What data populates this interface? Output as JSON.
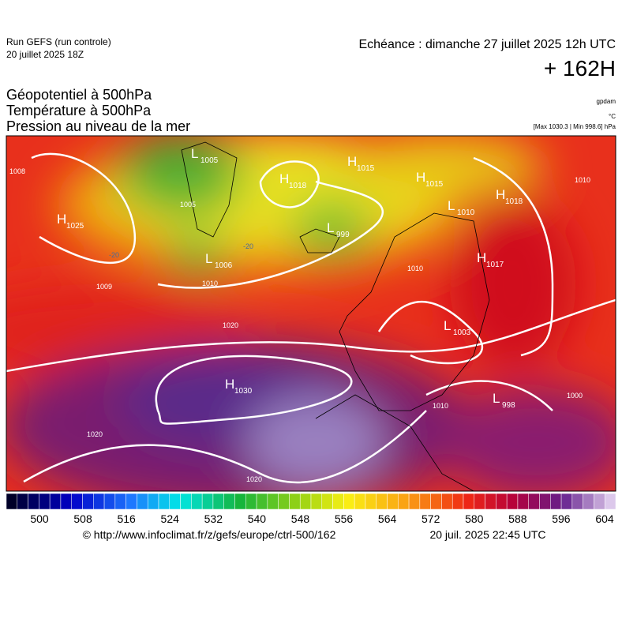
{
  "header": {
    "run": "Run GEFS (run controle)",
    "run_date": "20 juillet 2025 18Z",
    "valid": "Echéance : dimanche 27 juillet 2025 12h UTC",
    "lead": "+ 162H",
    "fields": [
      "Géopotentiel à 500hPa",
      "Température à 500hPa",
      "Pression au niveau de la mer"
    ],
    "units": [
      "gpdam",
      "°C",
      "[Max 1030.3 | Min 998.6] hPa"
    ]
  },
  "map": {
    "centers": [
      {
        "symbol": "L",
        "value": "1005"
      },
      {
        "symbol": "H",
        "value": "1025"
      },
      {
        "symbol": "H",
        "value": "1018"
      },
      {
        "symbol": "H",
        "value": "1015"
      },
      {
        "symbol": "H",
        "value": "1015"
      },
      {
        "symbol": "H",
        "value": "1018"
      },
      {
        "symbol": "L",
        "value": "1010"
      },
      {
        "symbol": "L",
        "value": "999"
      },
      {
        "symbol": "L",
        "value": "1006"
      },
      {
        "symbol": "H",
        "value": "1017"
      },
      {
        "symbol": "L",
        "value": "1003"
      },
      {
        "symbol": "H",
        "value": "1030"
      },
      {
        "symbol": "L",
        "value": "998"
      }
    ],
    "isobar_labels": [
      "1008",
      "1005",
      "1009",
      "1010",
      "1020",
      "1010",
      "1010",
      "1000",
      "1020",
      "1020",
      "1010"
    ],
    "temperature_labels": [
      "-20",
      "-20"
    ]
  },
  "colorbar": {
    "ticks": [
      500,
      508,
      516,
      524,
      532,
      540,
      548,
      556,
      564,
      572,
      580,
      588,
      596,
      604
    ]
  },
  "footer": {
    "source": "© http://www.infoclimat.fr/z/gefs/europe/ctrl-500/162",
    "created": "20 juil. 2025 22:45 UTC"
  }
}
